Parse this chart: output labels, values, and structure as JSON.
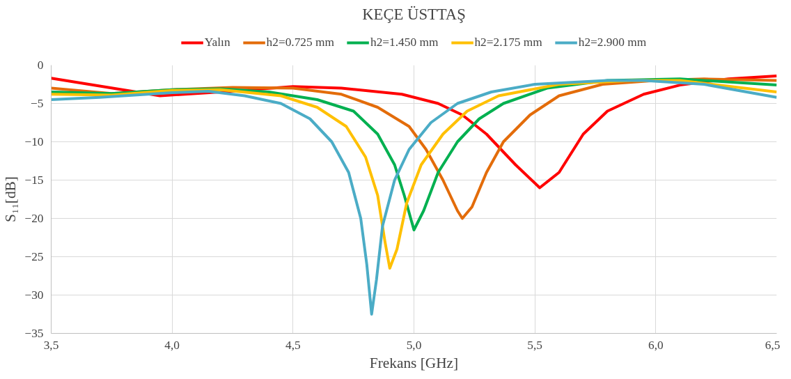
{
  "chart_data": {
    "type": "line",
    "title": "KEÇE ÜSTTAŞ",
    "xlabel": "Frekans [GHz]",
    "ylabel": "S₁₁[dB]",
    "xlim": [
      3.5,
      6.5
    ],
    "xticks": [
      {
        "value": 3.5,
        "label": "3,5"
      },
      {
        "value": 4.0,
        "label": "4,0"
      },
      {
        "value": 4.5,
        "label": "4,5"
      },
      {
        "value": 5.0,
        "label": "5,0"
      },
      {
        "value": 5.5,
        "label": "5,5"
      },
      {
        "value": 6.0,
        "label": "6,0"
      },
      {
        "value": 6.5,
        "label": "6,5"
      }
    ],
    "ylim": [
      -35,
      0
    ],
    "yticks": [
      -35,
      -30,
      -25,
      -20,
      -15,
      -10,
      -5,
      0
    ],
    "grid": true,
    "legend": "top",
    "marker": "none",
    "line_style": "solid",
    "series": [
      {
        "name": "Yalın",
        "color": "#ff0000",
        "x": [
          3.5,
          3.95,
          4.2,
          4.5,
          4.7,
          4.95,
          5.1,
          5.2,
          5.3,
          5.42,
          5.52,
          5.6,
          5.7,
          5.8,
          5.95,
          6.1,
          6.3,
          6.5
        ],
        "values": [
          -1.7,
          -4,
          -3.5,
          -2.8,
          -3.0,
          -3.8,
          -5,
          -6.5,
          -9,
          -13,
          -16,
          -14,
          -9,
          -6,
          -3.8,
          -2.6,
          -1.8,
          -1.4
        ]
      },
      {
        "name": "h2=0.725 mm",
        "color": "#e36c0a",
        "x": [
          3.5,
          3.75,
          4.0,
          4.25,
          4.5,
          4.7,
          4.85,
          4.98,
          5.05,
          5.12,
          5.18,
          5.2,
          5.24,
          5.3,
          5.37,
          5.48,
          5.6,
          5.78,
          6.0,
          6.2,
          6.5
        ],
        "values": [
          -3,
          -3.7,
          -3.2,
          -2.9,
          -3,
          -3.8,
          -5.5,
          -8,
          -11,
          -15,
          -19,
          -20,
          -18.5,
          -14,
          -10,
          -6.5,
          -4,
          -2.5,
          -2,
          -1.8,
          -2
        ]
      },
      {
        "name": "h2=1.450 mm",
        "color": "#00b050",
        "x": [
          3.5,
          3.75,
          4.0,
          4.2,
          4.4,
          4.6,
          4.75,
          4.85,
          4.92,
          4.96,
          5.0,
          5.04,
          5.1,
          5.18,
          5.27,
          5.37,
          5.55,
          5.8,
          6.1,
          6.5
        ],
        "values": [
          -3.5,
          -3.7,
          -3.2,
          -3.1,
          -3.5,
          -4.5,
          -6,
          -9,
          -13,
          -17,
          -21.5,
          -19,
          -14,
          -10,
          -7,
          -5,
          -3,
          -2,
          -1.8,
          -2.6
        ]
      },
      {
        "name": "h2=2.175 mm",
        "color": "#ffc000",
        "x": [
          3.5,
          3.75,
          4.0,
          4.2,
          4.45,
          4.6,
          4.72,
          4.8,
          4.85,
          4.88,
          4.9,
          4.93,
          4.97,
          5.03,
          5.12,
          5.22,
          5.35,
          5.6,
          5.9,
          6.1,
          6.5
        ],
        "values": [
          -3.8,
          -3.9,
          -3.3,
          -3.2,
          -4,
          -5.5,
          -8,
          -12,
          -17,
          -23,
          -26.5,
          -24,
          -18,
          -13,
          -9,
          -6,
          -4,
          -2.5,
          -2,
          -2,
          -3.5
        ]
      },
      {
        "name": "h2=2.900 mm",
        "color": "#4bacc6",
        "x": [
          3.5,
          3.7,
          4.0,
          4.15,
          4.3,
          4.45,
          4.57,
          4.66,
          4.73,
          4.78,
          4.805,
          4.825,
          4.845,
          4.87,
          4.92,
          4.98,
          5.07,
          5.18,
          5.32,
          5.5,
          5.8,
          5.95,
          6.2,
          6.5
        ],
        "values": [
          -4.5,
          -4.2,
          -3.6,
          -3.4,
          -4,
          -5,
          -7,
          -10,
          -14,
          -20,
          -26,
          -32.5,
          -28,
          -21,
          -15,
          -11,
          -7.5,
          -5,
          -3.5,
          -2.5,
          -2,
          -2,
          -2.5,
          -4.2
        ]
      }
    ]
  }
}
